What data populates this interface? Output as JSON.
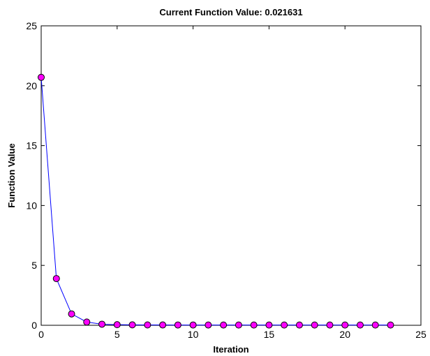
{
  "chart_data": {
    "type": "line",
    "title": "Current Function Value: 0.021631",
    "xlabel": "Iteration",
    "ylabel": "Function Value",
    "xlim": [
      0,
      25
    ],
    "ylim": [
      0,
      25
    ],
    "xticks": [
      0,
      5,
      10,
      15,
      20,
      25
    ],
    "yticks": [
      0,
      5,
      10,
      15,
      20,
      25
    ],
    "grid": false,
    "legend": "none",
    "series": [
      {
        "line_color": "#0000ff",
        "marker_color": "#ff00ff",
        "marker_edge_color": "#000000",
        "x": [
          0,
          1,
          2,
          3,
          4,
          5,
          6,
          7,
          8,
          9,
          10,
          11,
          12,
          13,
          14,
          15,
          16,
          17,
          18,
          19,
          20,
          21,
          22,
          23
        ],
        "y": [
          20.7,
          3.9,
          0.95,
          0.27,
          0.09,
          0.05,
          0.035,
          0.03,
          0.027,
          0.025,
          0.024,
          0.023,
          0.0228,
          0.0225,
          0.0223,
          0.0221,
          0.022,
          0.0219,
          0.0218,
          0.0217,
          0.0217,
          0.0216,
          0.0216,
          0.021631
        ]
      }
    ]
  }
}
